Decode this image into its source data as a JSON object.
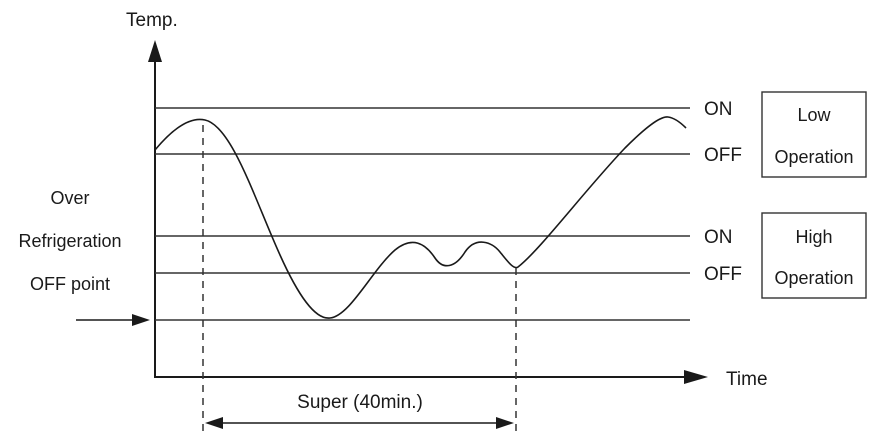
{
  "axes": {
    "y_label": "Temp.",
    "x_label": "Time"
  },
  "thresholds": {
    "low_on": "ON",
    "low_off": "OFF",
    "high_on": "ON",
    "high_off": "OFF"
  },
  "boxes": {
    "low": {
      "line1": "Low",
      "line2": "Operation"
    },
    "high": {
      "line1": "High",
      "line2": "Operation"
    }
  },
  "over_refrigeration": {
    "line1": "Over",
    "line2": "Refrigeration",
    "line3": "OFF point"
  },
  "super_label": "Super (40min.)"
}
